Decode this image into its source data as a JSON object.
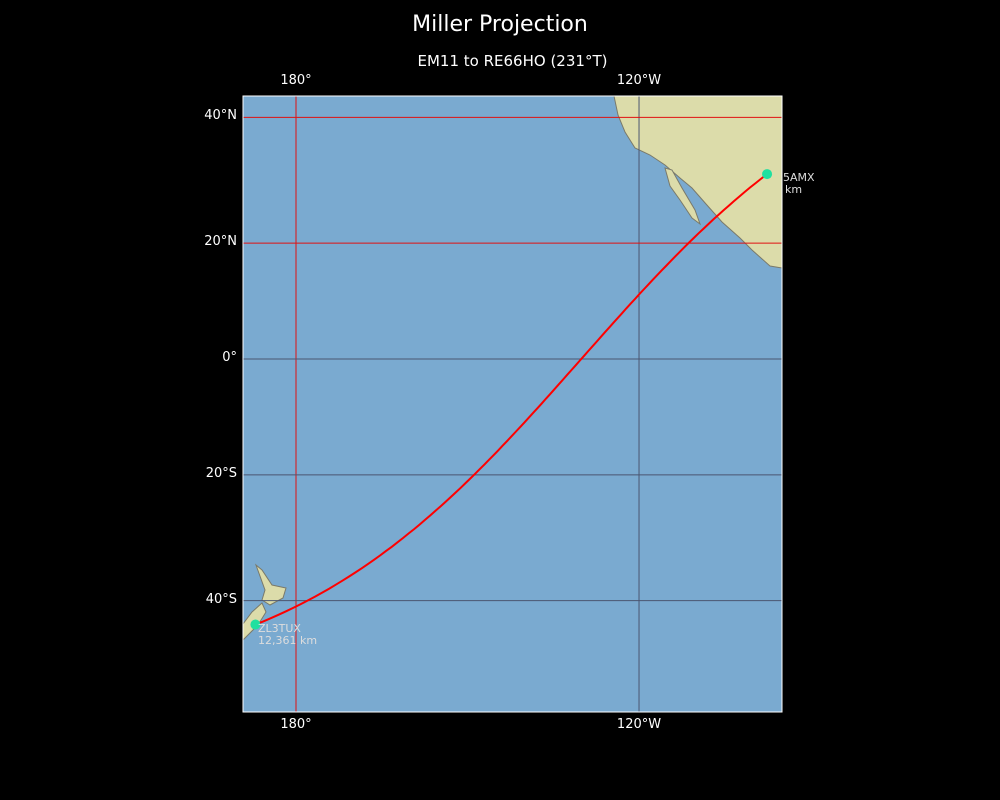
{
  "title": "Miller Projection",
  "subtitle": "EM11 to RE66HO (231°T)",
  "map": {
    "projection": "Miller",
    "extent": {
      "lon_west": 170.7,
      "lon_east": -95.2,
      "lat_south": -57,
      "lat_north": 43
    },
    "ocean_color": "#7aaad0",
    "land_color": "#dcdcaa",
    "route_color": "#ff0000",
    "marker_color": "#20e0a0",
    "lon_ticks": [
      {
        "lon": 180,
        "label": "180°"
      },
      {
        "lon": -120,
        "label": "120°W"
      }
    ],
    "lat_ticks": [
      {
        "lat": 40,
        "label": "40°N"
      },
      {
        "lat": 20,
        "label": "20°N"
      },
      {
        "lat": 0,
        "label": "0°"
      },
      {
        "lat": -20,
        "label": "20°S"
      },
      {
        "lat": -40,
        "label": "40°S"
      }
    ],
    "red_gridlines": {
      "lon": [
        180
      ],
      "lat": [
        40,
        20
      ]
    },
    "points": {
      "start": {
        "lat": 31.3,
        "lon": -97.6,
        "label_line1": "5AMX",
        "label_line2": "km"
      },
      "end": {
        "lat": -43.5,
        "lon": 172.9,
        "label_line1": "ZL3TUX",
        "label_line2": "12,361 km"
      }
    }
  }
}
